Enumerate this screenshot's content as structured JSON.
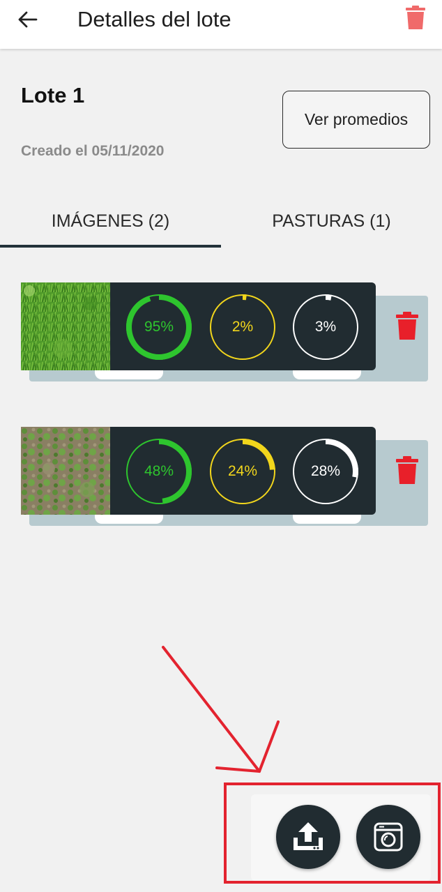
{
  "header": {
    "title": "Detalles del lote",
    "back_icon": "arrow-left-icon",
    "trash_icon": "trash-icon",
    "trash_color": "#f06a6a"
  },
  "lote": {
    "name": "Lote 1",
    "created": "Creado el 05/11/2020",
    "ver_promedios": "Ver promedios"
  },
  "tabs": [
    {
      "label": "IMÁGENES (2)",
      "active": true
    },
    {
      "label": "PASTURAS (1)",
      "active": false
    }
  ],
  "colors": {
    "green": "#2ec52e",
    "yellow": "#f2d61c",
    "white": "#ffffff",
    "card_dark": "#212c31",
    "card_back": "#b7cacf",
    "red": "#e8202a",
    "annotation_red": "#e3232f"
  },
  "images": [
    {
      "thumb": "grass-dense",
      "metrics": [
        {
          "label": "95%",
          "value": 95,
          "color": "green"
        },
        {
          "label": "2%",
          "value": 2,
          "color": "yellow"
        },
        {
          "label": "3%",
          "value": 3,
          "color": "white"
        }
      ]
    },
    {
      "thumb": "grass-sparse",
      "metrics": [
        {
          "label": "48%",
          "value": 48,
          "color": "green"
        },
        {
          "label": "24%",
          "value": 24,
          "color": "yellow"
        },
        {
          "label": "28%",
          "value": 28,
          "color": "white"
        }
      ]
    }
  ],
  "fabs": [
    {
      "icon": "upload-icon"
    },
    {
      "icon": "camera-icon"
    }
  ]
}
